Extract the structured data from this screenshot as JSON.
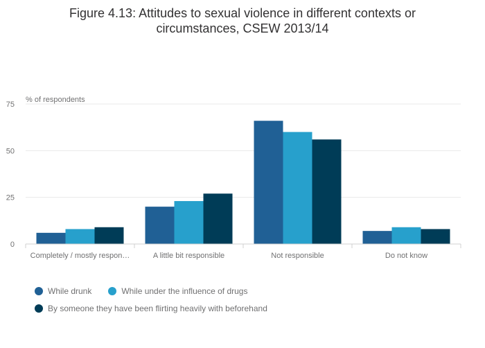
{
  "title_line1": "Figure 4.13: Attitudes to sexual violence in different contexts or",
  "title_line2": "circumstances, CSEW 2013/14",
  "chart_data": {
    "type": "bar",
    "title": "Figure 4.13: Attitudes to sexual violence in different contexts or circumstances, CSEW 2013/14",
    "ylabel": "% of respondents",
    "xlabel": "",
    "ylim": [
      0,
      75
    ],
    "yticks": [
      0,
      25,
      50,
      75
    ],
    "grid": true,
    "legend_position": "bottom",
    "categories": [
      "Completely / mostly respon…",
      "A little bit responsible",
      "Not responsible",
      "Do not know"
    ],
    "series": [
      {
        "name": "While drunk",
        "color": "#206095",
        "values": [
          6,
          20,
          66,
          7
        ]
      },
      {
        "name": "While under the influence of drugs",
        "color": "#27a0cc",
        "values": [
          8,
          23,
          60,
          9
        ]
      },
      {
        "name": "By someone they have been flirting heavily with beforehand",
        "color": "#003c57",
        "values": [
          9,
          27,
          56,
          8
        ]
      }
    ]
  }
}
